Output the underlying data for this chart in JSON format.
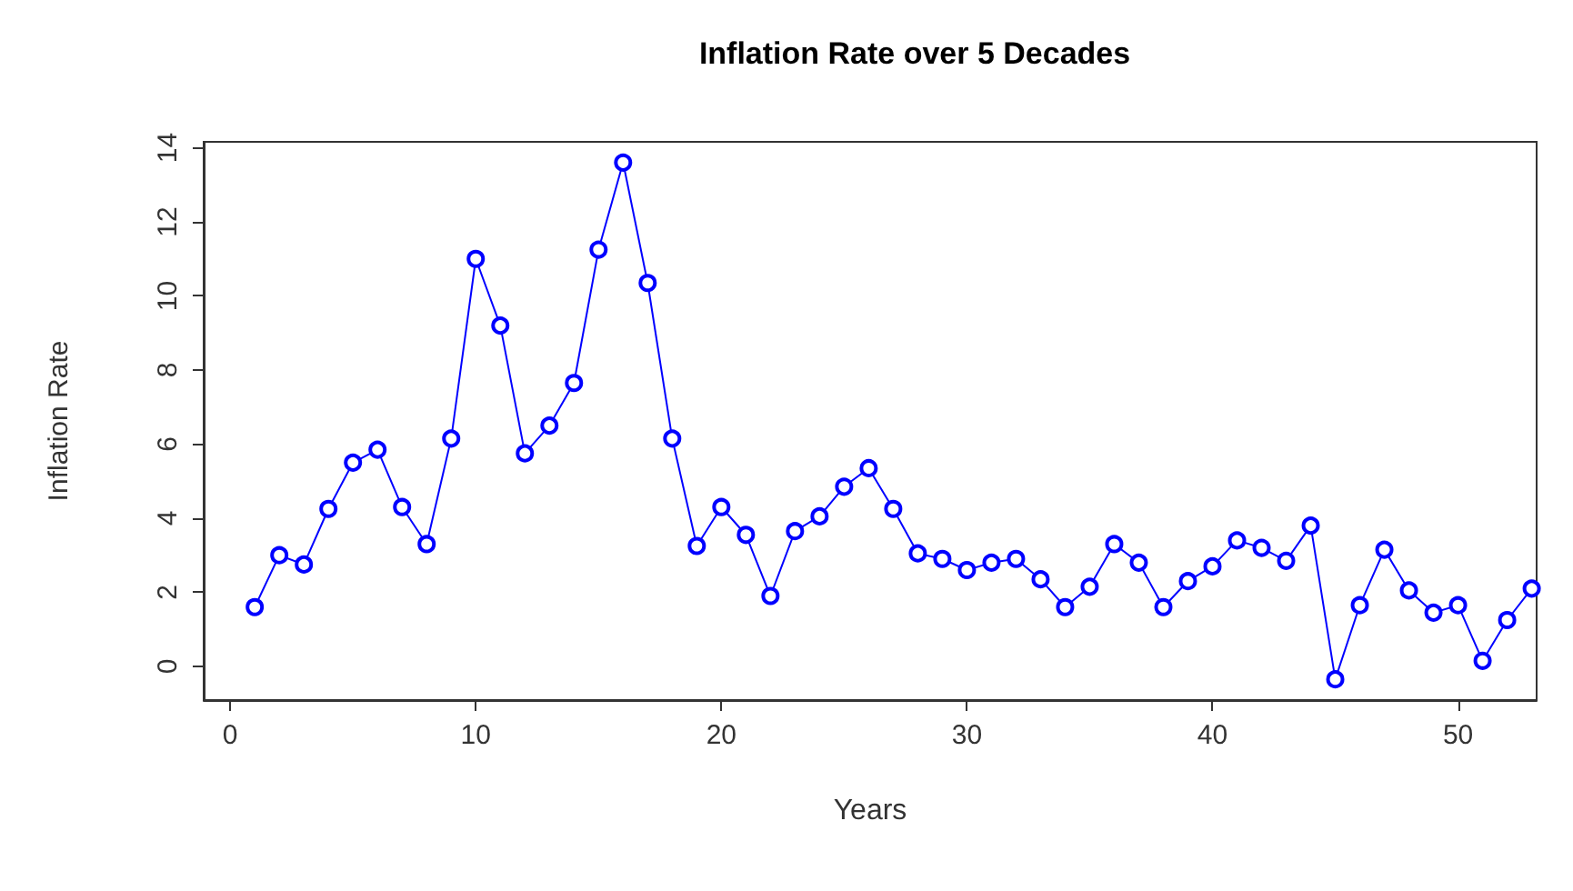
{
  "chart_data": {
    "type": "line",
    "title": "Inflation Rate over 5 Decades",
    "xlabel": "Years",
    "ylabel": "Inflation Rate",
    "x": [
      1,
      2,
      3,
      4,
      5,
      6,
      7,
      8,
      9,
      10,
      11,
      12,
      13,
      14,
      15,
      16,
      17,
      18,
      19,
      20,
      21,
      22,
      23,
      24,
      25,
      26,
      27,
      28,
      29,
      30,
      31,
      32,
      33,
      34,
      35,
      36,
      37,
      38,
      39,
      40,
      41,
      42,
      43,
      44,
      45,
      46,
      47,
      48,
      49,
      50,
      51,
      52,
      53
    ],
    "series": [
      {
        "color": "#0000ff",
        "values": [
          1.6,
          3.0,
          2.75,
          4.25,
          5.5,
          5.85,
          4.3,
          3.3,
          6.15,
          11.0,
          9.2,
          5.75,
          6.5,
          7.65,
          11.25,
          13.6,
          10.35,
          6.15,
          3.25,
          4.3,
          3.55,
          1.9,
          3.65,
          4.05,
          4.85,
          5.35,
          4.25,
          3.05,
          2.9,
          2.6,
          2.8,
          2.9,
          2.35,
          1.6,
          2.15,
          3.3,
          2.8,
          1.6,
          2.3,
          2.7,
          3.4,
          3.2,
          2.85,
          3.8,
          -0.35,
          1.65,
          3.15,
          2.05,
          1.45,
          1.65,
          0.15,
          1.25,
          2.1
        ]
      }
    ],
    "xlim": [
      -1.08,
      53.2
    ],
    "xticks": [
      0,
      10,
      20,
      30,
      40,
      50
    ],
    "ylim": [
      -0.91,
      14.16
    ],
    "yticks": [
      0,
      2,
      4,
      6,
      8,
      10,
      12,
      14
    ],
    "grid": false,
    "marker": "circle",
    "line_style": "solid"
  }
}
